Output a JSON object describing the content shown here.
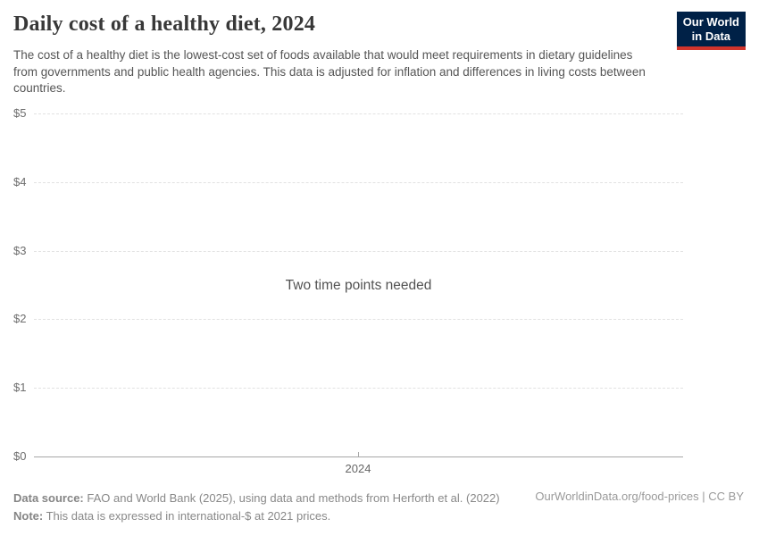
{
  "header": {
    "title": "Daily cost of a healthy diet, 2024",
    "subtitle": "The cost of a healthy diet is the lowest-cost set of foods available that would meet requirements in dietary guidelines from governments and public health agencies. This data is adjusted for inflation and differences in living costs between countries.",
    "logo": {
      "line1": "Our World",
      "line2": "in Data",
      "bg_color": "#002147",
      "stripe_color": "#d1342c"
    }
  },
  "chart_data": {
    "type": "line",
    "title": "Daily cost of a healthy diet, 2024",
    "series": [],
    "empty_message": "Two time points needed",
    "xlabel": "",
    "ylabel": "",
    "x_tick_labels": [
      "2024"
    ],
    "y_tick_labels": [
      "$0",
      "$1",
      "$2",
      "$3",
      "$4",
      "$5"
    ],
    "y_tick_values": [
      0,
      1,
      2,
      3,
      4,
      5
    ],
    "ylim": [
      0,
      5
    ],
    "grid": true,
    "gridline_color": "#e2e2e2",
    "axis_color": "#a7a7a7"
  },
  "footer": {
    "data_source_label": "Data source:",
    "data_source_text": " FAO and World Bank (2025), using data and methods from Herforth et al. (2022)",
    "note_label": "Note:",
    "note_text": " This data is expressed in international-$ at 2021 prices.",
    "attribution": "OurWorldinData.org/food-prices | CC BY"
  }
}
